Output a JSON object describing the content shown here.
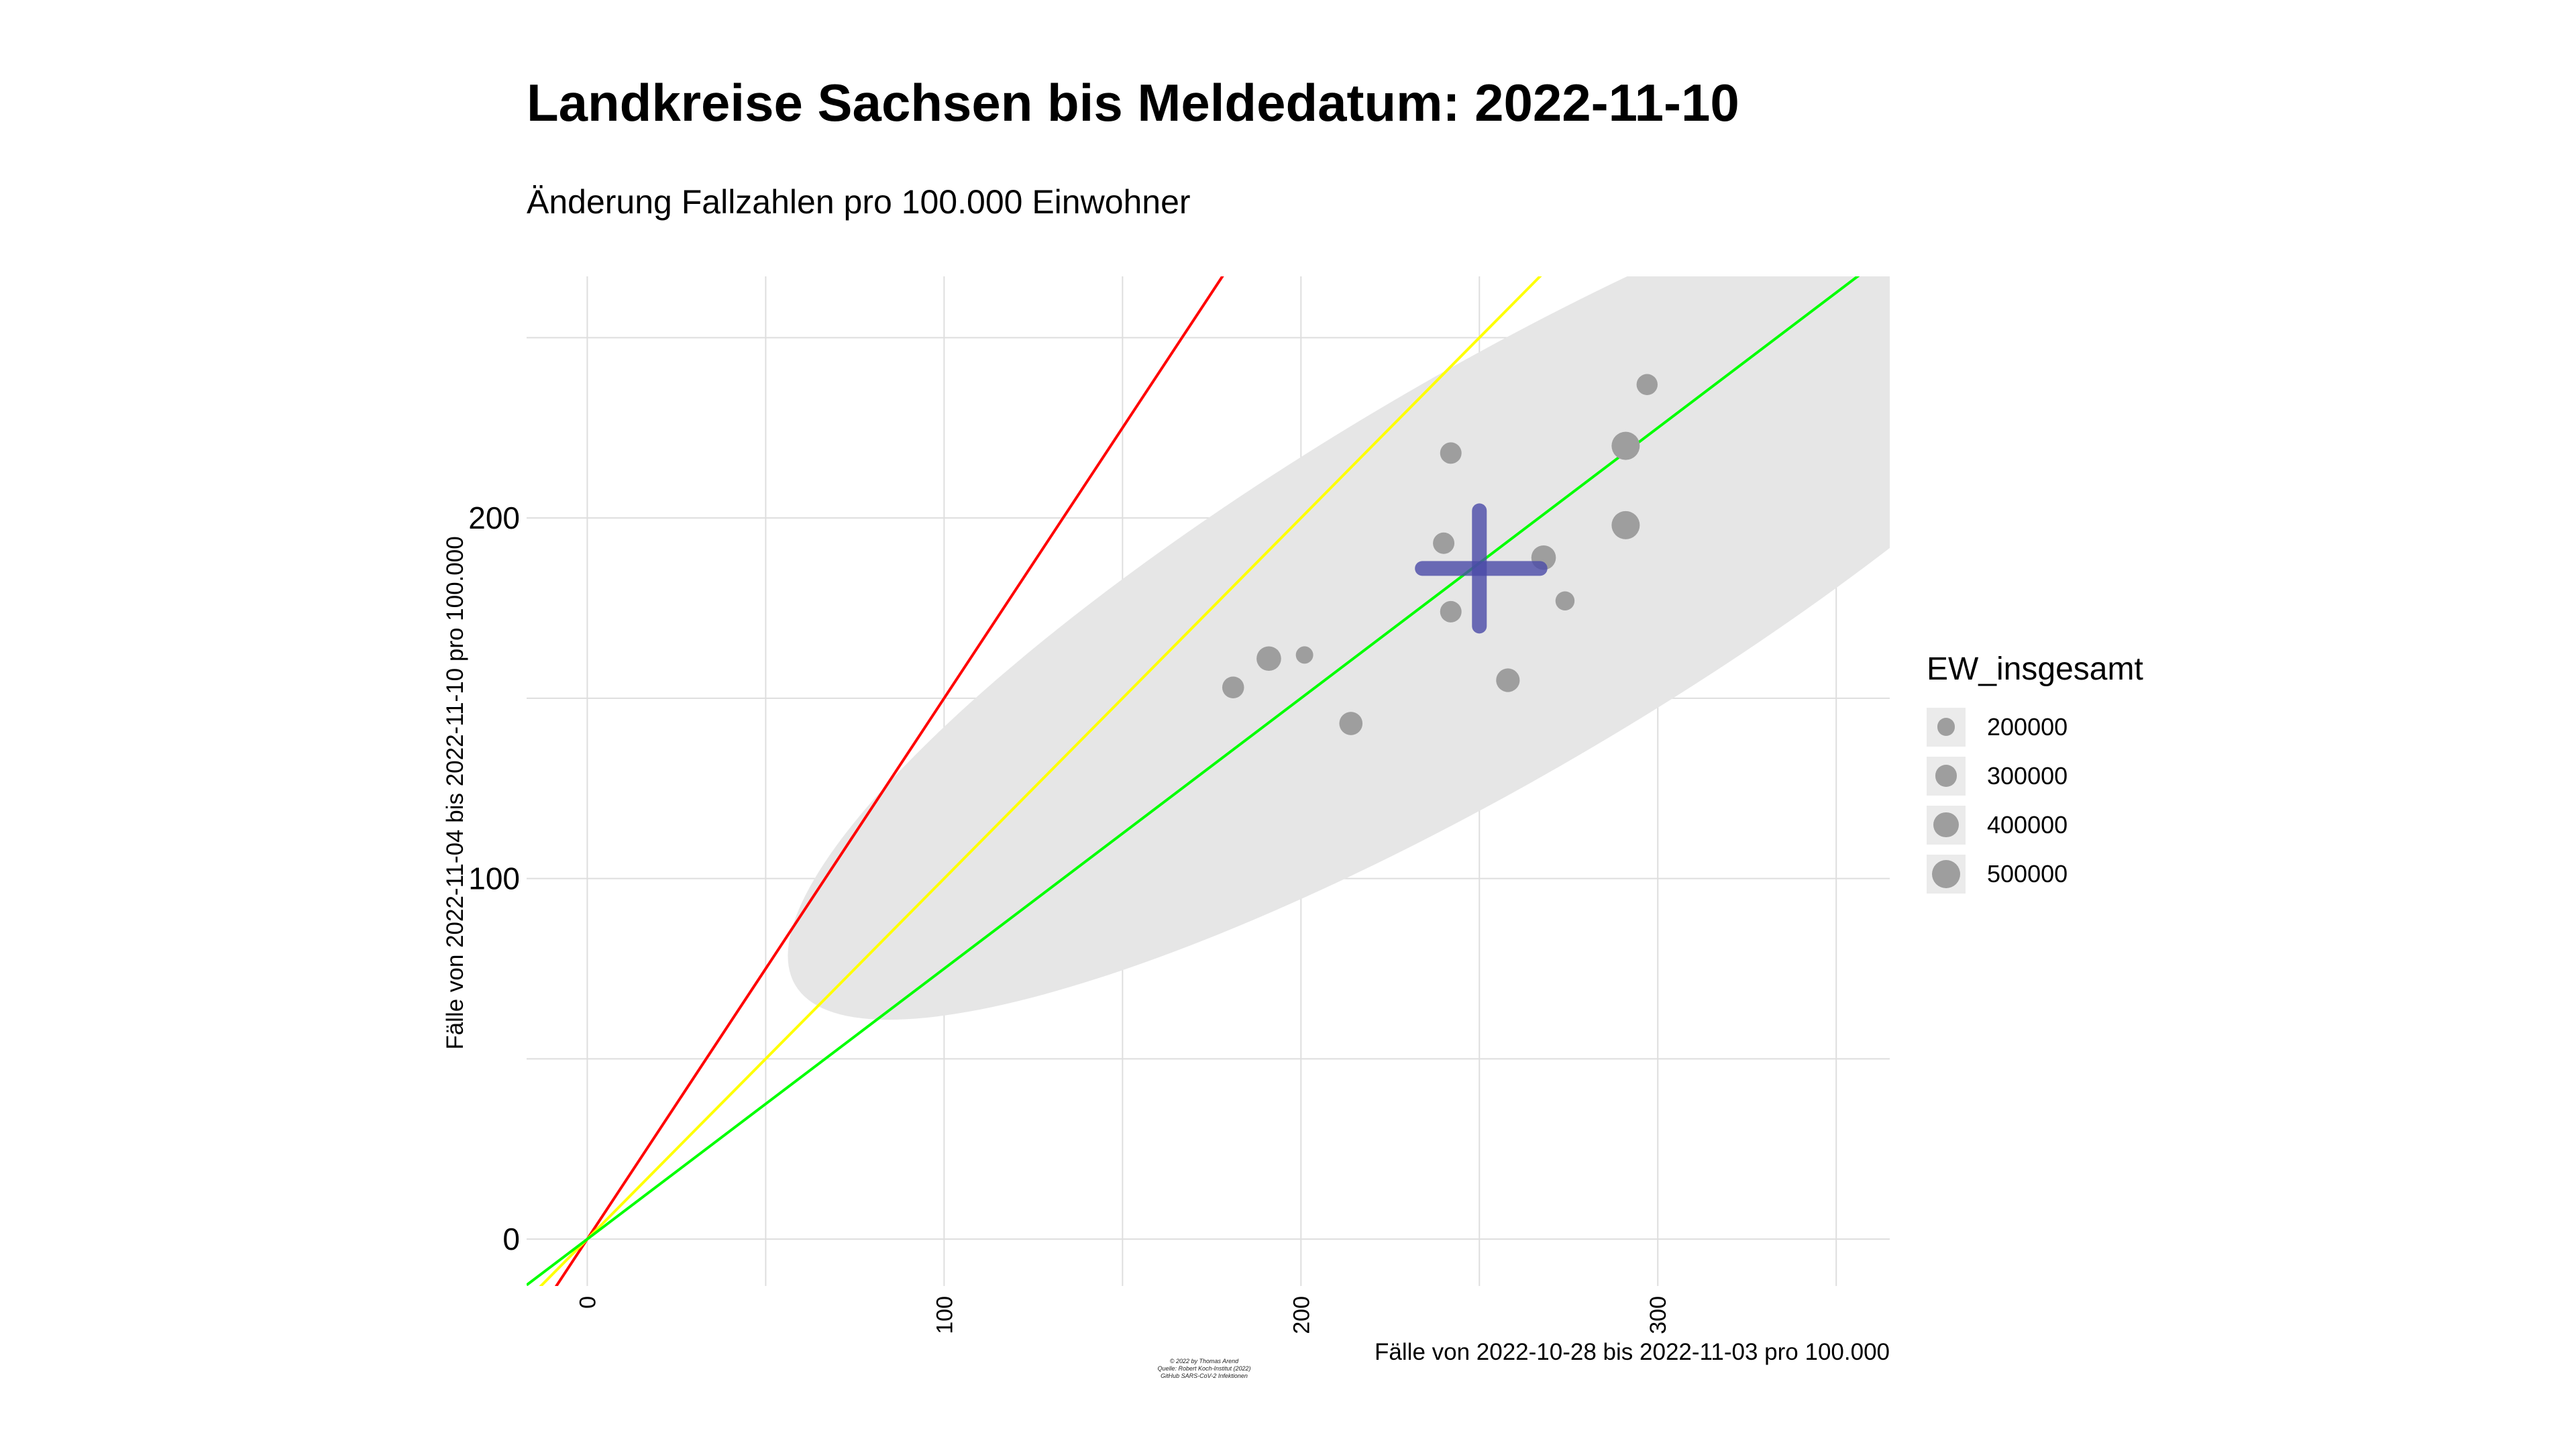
{
  "header": {
    "title": "Landkreise Sachsen bis Meldedatum: 2022-11-10",
    "subtitle": "Änderung Fallzahlen pro 100.000 Einwohner"
  },
  "caption": {
    "line1": "© 2022 by Thomas Arend",
    "line2": "Quelle: Robert Koch-Institut (2022)",
    "line3": "GitHub SARS-CoV-2 Infektionen"
  },
  "colors": {
    "panel": "#ffffff",
    "grid": "#dedede",
    "ellipse": "#e6e6e6",
    "points": "#9e9e9e",
    "cross": "#4a4aa8",
    "line_red": "#ff0000",
    "line_yellow": "#ffff00",
    "line_green": "#00ff00"
  },
  "chart_data": {
    "type": "scatter",
    "xlabel": "Fälle von 2022-10-28 bis 2022-11-03 pro 100.000",
    "ylabel": "Fälle von 2022-11-04 bis 2022-11-10 pro 100.000",
    "xlim": [
      -17,
      365
    ],
    "ylim": [
      -13,
      267
    ],
    "x_ticks": [
      0,
      100,
      200,
      300
    ],
    "y_ticks": [
      0,
      100,
      200
    ],
    "grid": true,
    "reference_lines": [
      {
        "color": "red",
        "slope": 1.5,
        "intercept": 0
      },
      {
        "color": "yellow",
        "slope": 1.0,
        "intercept": 0
      },
      {
        "color": "green",
        "slope": 0.75,
        "intercept": 0
      }
    ],
    "ellipse": {
      "cx": 253,
      "cy": 184,
      "rx": 226,
      "ry": 56,
      "angle_deg": 30.5
    },
    "mean_cross": {
      "x": 250,
      "y": 186,
      "x_range": [
        234,
        267
      ],
      "y_range": [
        170,
        202
      ]
    },
    "size_legend": {
      "title": "EW_insgesamt",
      "values": [
        200000,
        300000,
        400000,
        500000
      ],
      "labels": [
        "200000",
        "300000",
        "400000",
        "500000"
      ]
    },
    "points": [
      {
        "x": 297,
        "y": 237,
        "ew": 280000
      },
      {
        "x": 291,
        "y": 220,
        "ew": 500000
      },
      {
        "x": 242,
        "y": 218,
        "ew": 290000
      },
      {
        "x": 291,
        "y": 198,
        "ew": 500000
      },
      {
        "x": 240,
        "y": 193,
        "ew": 290000
      },
      {
        "x": 268,
        "y": 189,
        "ew": 380000
      },
      {
        "x": 274,
        "y": 177,
        "ew": 230000
      },
      {
        "x": 242,
        "y": 174,
        "ew": 290000
      },
      {
        "x": 191,
        "y": 161,
        "ew": 380000
      },
      {
        "x": 201,
        "y": 162,
        "ew": 190000
      },
      {
        "x": 258,
        "y": 155,
        "ew": 350000
      },
      {
        "x": 181,
        "y": 153,
        "ew": 300000
      },
      {
        "x": 214,
        "y": 143,
        "ew": 340000
      }
    ]
  }
}
